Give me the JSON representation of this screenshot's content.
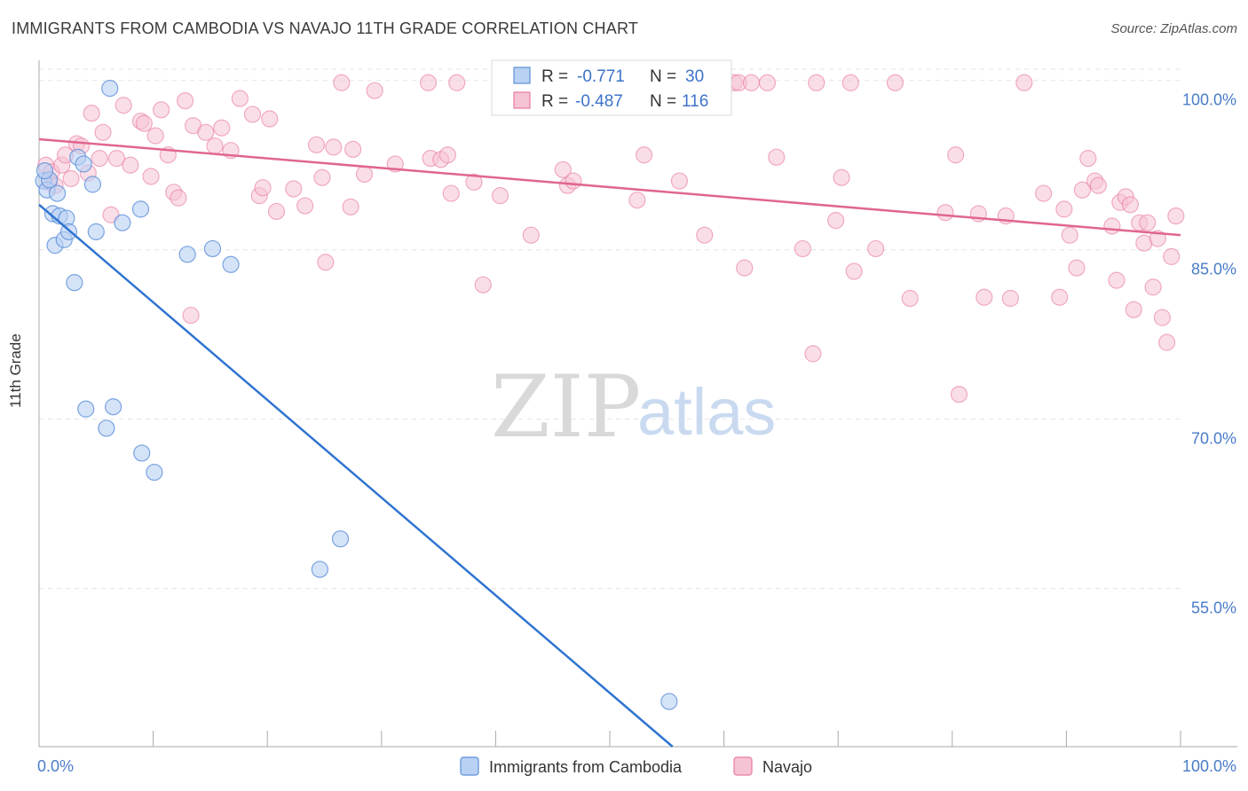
{
  "title": "IMMIGRANTS FROM CAMBODIA VS NAVAJO 11TH GRADE CORRELATION CHART",
  "source": "Source: ZipAtlas.com",
  "watermark": {
    "zip": "ZIP",
    "atlas": "atlas"
  },
  "colors": {
    "blue": "#5b8fd9",
    "blue_fill": "#b9d1f3",
    "blue_line": "#2f74d0",
    "pink": "#e87aa0",
    "pink_fill": "#f6c3d4",
    "pink_line": "#e0668f",
    "tick": "#4a7cc9",
    "grid": "#e3e3e3"
  },
  "legend": {
    "rows": [
      {
        "r_label": "R =",
        "r_value": "-0.771",
        "n_label": "N =",
        "n_value": "30",
        "color": "blue"
      },
      {
        "r_label": "R =",
        "r_value": "-0.487",
        "n_label": "N =",
        "n_value": "116",
        "color": "pink"
      }
    ]
  },
  "chart_data": {
    "type": "scatter",
    "title": "IMMIGRANTS FROM CAMBODIA VS NAVAJO 11TH GRADE CORRELATION CHART",
    "xlabel": "",
    "ylabel": "11th Grade",
    "xlim": [
      0,
      100
    ],
    "ylim": [
      41,
      101
    ],
    "x_tick_labels": [
      "0.0%",
      "100.0%"
    ],
    "y_ticks": [
      55,
      70,
      85,
      100
    ],
    "y_tick_labels": [
      "55.0%",
      "70.0%",
      "85.0%",
      "100.0%"
    ],
    "grid": true,
    "legend_position": "bottom",
    "series": [
      {
        "name": "Immigrants from Cambodia",
        "color": "blue",
        "trend": {
          "x": [
            0,
            55.5
          ],
          "y": [
            89.0,
            41.0
          ]
        },
        "points": [
          [
            0.4,
            91.1
          ],
          [
            0.7,
            90.3
          ],
          [
            0.9,
            91.2
          ],
          [
            1.2,
            88.2
          ],
          [
            1.4,
            85.4
          ],
          [
            1.6,
            90.0
          ],
          [
            1.8,
            88.0
          ],
          [
            2.2,
            85.9
          ],
          [
            2.4,
            87.8
          ],
          [
            2.6,
            86.6
          ],
          [
            3.1,
            82.1
          ],
          [
            3.4,
            93.2
          ],
          [
            3.9,
            92.6
          ],
          [
            4.1,
            70.9
          ],
          [
            4.7,
            90.8
          ],
          [
            5.0,
            86.6
          ],
          [
            5.9,
            69.2
          ],
          [
            6.2,
            99.3
          ],
          [
            6.5,
            71.1
          ],
          [
            7.3,
            87.4
          ],
          [
            8.9,
            88.6
          ],
          [
            9.0,
            67.0
          ],
          [
            10.1,
            65.3
          ],
          [
            13.0,
            84.6
          ],
          [
            15.2,
            85.1
          ],
          [
            16.8,
            83.7
          ],
          [
            24.6,
            56.7
          ],
          [
            26.4,
            59.4
          ],
          [
            55.2,
            45.0
          ],
          [
            0.5,
            92.0
          ]
        ]
      },
      {
        "name": "Navajo",
        "color": "pink",
        "trend": {
          "x": [
            0,
            100
          ],
          "y": [
            94.8,
            86.3
          ]
        },
        "points": [
          [
            0.6,
            92.5
          ],
          [
            0.9,
            91.0
          ],
          [
            1.1,
            91.9
          ],
          [
            1.4,
            90.7
          ],
          [
            2.0,
            92.5
          ],
          [
            2.3,
            93.4
          ],
          [
            2.8,
            91.3
          ],
          [
            3.3,
            94.4
          ],
          [
            3.7,
            94.2
          ],
          [
            4.3,
            91.8
          ],
          [
            4.6,
            97.1
          ],
          [
            5.3,
            93.1
          ],
          [
            5.6,
            95.4
          ],
          [
            6.3,
            88.1
          ],
          [
            6.8,
            93.1
          ],
          [
            7.4,
            97.8
          ],
          [
            8.0,
            92.5
          ],
          [
            8.9,
            96.4
          ],
          [
            9.2,
            96.2
          ],
          [
            9.8,
            91.5
          ],
          [
            10.2,
            95.1
          ],
          [
            10.7,
            97.4
          ],
          [
            11.3,
            93.4
          ],
          [
            11.8,
            90.1
          ],
          [
            12.2,
            89.6
          ],
          [
            12.8,
            98.2
          ],
          [
            13.3,
            79.2
          ],
          [
            13.5,
            96.0
          ],
          [
            14.6,
            95.4
          ],
          [
            15.4,
            94.2
          ],
          [
            16.0,
            95.8
          ],
          [
            16.8,
            93.8
          ],
          [
            17.6,
            98.4
          ],
          [
            18.7,
            97.0
          ],
          [
            19.3,
            89.8
          ],
          [
            19.6,
            90.5
          ],
          [
            20.2,
            96.6
          ],
          [
            20.8,
            88.4
          ],
          [
            22.3,
            90.4
          ],
          [
            23.3,
            88.9
          ],
          [
            24.3,
            94.3
          ],
          [
            24.8,
            91.4
          ],
          [
            25.1,
            83.9
          ],
          [
            25.8,
            94.1
          ],
          [
            26.5,
            99.8
          ],
          [
            27.3,
            88.8
          ],
          [
            27.5,
            93.9
          ],
          [
            28.5,
            91.7
          ],
          [
            29.4,
            99.1
          ],
          [
            31.2,
            92.6
          ],
          [
            34.1,
            99.8
          ],
          [
            34.3,
            93.1
          ],
          [
            35.2,
            93.0
          ],
          [
            35.8,
            93.4
          ],
          [
            36.1,
            90.0
          ],
          [
            36.6,
            99.8
          ],
          [
            38.1,
            91.0
          ],
          [
            38.9,
            81.9
          ],
          [
            40.4,
            89.8
          ],
          [
            43.1,
            86.3
          ],
          [
            45.9,
            92.1
          ],
          [
            46.3,
            90.7
          ],
          [
            46.8,
            91.1
          ],
          [
            52.4,
            89.4
          ],
          [
            53.0,
            93.4
          ],
          [
            53.5,
            99.8
          ],
          [
            56.1,
            91.1
          ],
          [
            58.3,
            86.3
          ],
          [
            60.9,
            99.8
          ],
          [
            61.3,
            99.8
          ],
          [
            61.8,
            83.4
          ],
          [
            62.4,
            99.8
          ],
          [
            63.8,
            99.8
          ],
          [
            64.6,
            93.2
          ],
          [
            66.9,
            85.1
          ],
          [
            67.8,
            75.8
          ],
          [
            68.1,
            99.8
          ],
          [
            69.8,
            87.6
          ],
          [
            70.3,
            91.4
          ],
          [
            71.1,
            99.8
          ],
          [
            71.4,
            83.1
          ],
          [
            73.3,
            85.1
          ],
          [
            75.0,
            99.8
          ],
          [
            76.3,
            80.7
          ],
          [
            79.4,
            88.3
          ],
          [
            80.3,
            93.4
          ],
          [
            80.6,
            72.2
          ],
          [
            82.3,
            88.2
          ],
          [
            82.8,
            80.8
          ],
          [
            84.7,
            88.0
          ],
          [
            85.1,
            80.7
          ],
          [
            86.3,
            99.8
          ],
          [
            88.0,
            90.0
          ],
          [
            89.4,
            80.8
          ],
          [
            89.8,
            88.6
          ],
          [
            90.3,
            86.3
          ],
          [
            90.9,
            83.4
          ],
          [
            91.4,
            90.3
          ],
          [
            91.9,
            93.1
          ],
          [
            92.5,
            91.1
          ],
          [
            92.8,
            90.7
          ],
          [
            94.0,
            87.1
          ],
          [
            94.4,
            82.3
          ],
          [
            94.7,
            89.2
          ],
          [
            95.2,
            89.7
          ],
          [
            95.6,
            89.0
          ],
          [
            95.9,
            79.7
          ],
          [
            96.4,
            87.4
          ],
          [
            96.8,
            85.6
          ],
          [
            97.1,
            87.4
          ],
          [
            97.6,
            81.7
          ],
          [
            98.0,
            86.0
          ],
          [
            98.4,
            79.0
          ],
          [
            98.8,
            76.8
          ],
          [
            99.2,
            84.4
          ],
          [
            99.6,
            88.0
          ]
        ]
      }
    ]
  }
}
